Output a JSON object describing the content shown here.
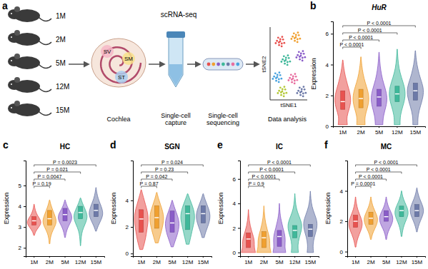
{
  "diagram": {
    "panel": "a",
    "ages": [
      "1M",
      "2M",
      "5M",
      "12M",
      "15M"
    ],
    "method": "scRNA-seq",
    "cochlea_labels": [
      "SV",
      "SM",
      "ST"
    ],
    "steps": [
      "Cochlea",
      "Single-cell capture",
      "Single-cell sequencing",
      "Data analysis"
    ],
    "axes": [
      "tSNE2",
      "tSNE1"
    ]
  },
  "chart_data": [
    {
      "type": "violin",
      "panel": "b",
      "title": "HuR",
      "ylabel": "Expression",
      "categories": [
        "1M",
        "2M",
        "5M",
        "12M",
        "15M"
      ],
      "colors": [
        "#e8524f",
        "#f0a030",
        "#8a5cc8",
        "#3fb89a",
        "#6d7aa8"
      ],
      "ylim": [
        0,
        6.8
      ],
      "yticks": [
        0,
        2,
        4,
        6
      ],
      "violins": [
        {
          "min": 0.1,
          "q1": 1.1,
          "median": 1.6,
          "q3": 2.3,
          "max": 4.3,
          "density": [
            0.55,
            0.45,
            0.8,
            1.0,
            0.85,
            0.55,
            0.3,
            0.12,
            0.02
          ]
        },
        {
          "min": 0.1,
          "q1": 1.2,
          "median": 1.8,
          "q3": 2.4,
          "max": 4.5,
          "density": [
            0.5,
            0.45,
            0.8,
            1.0,
            0.85,
            0.5,
            0.25,
            0.1,
            0.02
          ]
        },
        {
          "min": 0.1,
          "q1": 1.3,
          "median": 1.9,
          "q3": 2.4,
          "max": 4.8,
          "density": [
            0.45,
            0.5,
            0.85,
            1.0,
            0.75,
            0.4,
            0.2,
            0.08,
            0.02
          ]
        },
        {
          "min": 0.1,
          "q1": 1.6,
          "median": 2.1,
          "q3": 2.6,
          "max": 5.0,
          "density": [
            0.35,
            0.35,
            0.7,
            1.0,
            0.9,
            0.5,
            0.2,
            0.08,
            0.02
          ]
        },
        {
          "min": 0.1,
          "q1": 1.7,
          "median": 2.3,
          "q3": 2.8,
          "max": 4.9,
          "density": [
            0.3,
            0.3,
            0.6,
            0.95,
            1.0,
            0.6,
            0.3,
            0.1,
            0.02
          ]
        }
      ],
      "comparisons": [
        {
          "pair": [
            "1M",
            "2M"
          ],
          "label": "P < 0.0001"
        },
        {
          "pair": [
            "1M",
            "5M"
          ],
          "label": "P < 0.0001"
        },
        {
          "pair": [
            "1M",
            "12M"
          ],
          "label": "P < 0.0001"
        },
        {
          "pair": [
            "1M",
            "15M"
          ],
          "label": "P < 0.0001"
        }
      ]
    },
    {
      "type": "violin",
      "panel": "c",
      "title": "HC",
      "ylabel": "Expression",
      "categories": [
        "1M",
        "2M",
        "5M",
        "12M",
        "15M"
      ],
      "colors": [
        "#e8524f",
        "#f0a030",
        "#8a5cc8",
        "#3fb89a",
        "#6d7aa8"
      ],
      "ylim": [
        1.6,
        6.2
      ],
      "yticks": [
        2,
        3,
        4,
        5
      ],
      "violins": [
        {
          "min": 2.6,
          "q1": 3.1,
          "median": 3.3,
          "q3": 3.5,
          "max": 4.1,
          "density": [
            0.05,
            0.2,
            0.6,
            1.0,
            0.9,
            0.5,
            0.25,
            0.1,
            0.02
          ]
        },
        {
          "min": 2.2,
          "q1": 3.1,
          "median": 3.4,
          "q3": 3.8,
          "max": 4.3,
          "density": [
            0.05,
            0.1,
            0.3,
            0.7,
            1.0,
            0.8,
            0.5,
            0.2,
            0.03
          ]
        },
        {
          "min": 2.5,
          "q1": 3.3,
          "median": 3.6,
          "q3": 3.9,
          "max": 4.3,
          "density": [
            0.05,
            0.15,
            0.35,
            0.7,
            1.0,
            0.9,
            0.5,
            0.2,
            0.03
          ]
        },
        {
          "min": 2.1,
          "q1": 3.4,
          "median": 3.7,
          "q3": 4.0,
          "max": 4.4,
          "density": [
            0.02,
            0.08,
            0.15,
            0.4,
            0.8,
            1.0,
            0.7,
            0.3,
            0.03
          ]
        },
        {
          "min": 2.8,
          "q1": 3.5,
          "median": 3.8,
          "q3": 4.1,
          "max": 4.9,
          "density": [
            0.05,
            0.3,
            0.7,
            1.0,
            0.9,
            0.6,
            0.3,
            0.12,
            0.02
          ]
        }
      ],
      "comparisons": [
        {
          "pair": [
            "1M",
            "2M"
          ],
          "label": "P = 0.19"
        },
        {
          "pair": [
            "1M",
            "5M"
          ],
          "label": "P = 0.0047"
        },
        {
          "pair": [
            "1M",
            "12M"
          ],
          "label": "P = 0.021"
        },
        {
          "pair": [
            "1M",
            "15M"
          ],
          "label": "P = 0.0023"
        }
      ]
    },
    {
      "type": "violin",
      "panel": "d",
      "title": "SGN",
      "ylabel": "Expression",
      "categories": [
        "1M",
        "2M",
        "5M",
        "12M",
        "15M"
      ],
      "colors": [
        "#e8524f",
        "#f0a030",
        "#8a5cc8",
        "#3fb89a",
        "#6d7aa8"
      ],
      "ylim": [
        -0.2,
        7
      ],
      "yticks": [
        0,
        2,
        4
      ],
      "violins": [
        {
          "min": 0.3,
          "q1": 1.6,
          "median": 2.6,
          "q3": 3.3,
          "max": 4.8,
          "density": [
            0.2,
            0.5,
            0.7,
            0.85,
            1.0,
            0.9,
            0.6,
            0.3,
            0.03
          ]
        },
        {
          "min": 0.8,
          "q1": 1.9,
          "median": 2.7,
          "q3": 3.6,
          "max": 4.6,
          "density": [
            0.2,
            0.45,
            0.7,
            0.9,
            1.0,
            0.85,
            0.55,
            0.25,
            0.03
          ]
        },
        {
          "min": 0.5,
          "q1": 1.6,
          "median": 2.3,
          "q3": 3.2,
          "max": 4.0,
          "density": [
            0.15,
            0.4,
            0.7,
            0.9,
            1.0,
            0.85,
            0.55,
            0.25,
            0.03
          ]
        },
        {
          "min": 0.7,
          "q1": 1.8,
          "median": 3.0,
          "q3": 3.6,
          "max": 4.5,
          "density": [
            0.2,
            0.4,
            0.6,
            0.8,
            1.0,
            0.95,
            0.7,
            0.35,
            0.03
          ]
        },
        {
          "min": 1.2,
          "q1": 2.3,
          "median": 3.0,
          "q3": 3.6,
          "max": 4.5,
          "density": [
            0.15,
            0.35,
            0.65,
            0.9,
            1.0,
            0.85,
            0.55,
            0.25,
            0.03
          ]
        }
      ],
      "comparisons": [
        {
          "pair": [
            "1M",
            "2M"
          ],
          "label": "P = 0.87"
        },
        {
          "pair": [
            "1M",
            "5M"
          ],
          "label": "P = 0.042"
        },
        {
          "pair": [
            "1M",
            "12M"
          ],
          "label": "P = 0.23"
        },
        {
          "pair": [
            "1M",
            "15M"
          ],
          "label": "P = 0.024"
        }
      ]
    },
    {
      "type": "violin",
      "panel": "e",
      "title": "IC",
      "ylabel": "Expression",
      "categories": [
        "1M",
        "2M",
        "5M",
        "12M",
        "15M"
      ],
      "colors": [
        "#e8524f",
        "#f0a030",
        "#8a5cc8",
        "#3fb89a",
        "#6d7aa8"
      ],
      "ylim": [
        -0.3,
        7.5
      ],
      "yticks": [
        0,
        2,
        4,
        6
      ],
      "violins": [
        {
          "min": 0,
          "q1": 0.4,
          "median": 1.1,
          "q3": 1.6,
          "max": 3.5,
          "density": [
            1.0,
            0.8,
            0.85,
            0.7,
            0.45,
            0.25,
            0.12,
            0.05,
            0.01
          ]
        },
        {
          "min": 0,
          "q1": 0.4,
          "median": 1.2,
          "q3": 1.7,
          "max": 3.8,
          "density": [
            1.0,
            0.8,
            0.85,
            0.7,
            0.45,
            0.25,
            0.12,
            0.05,
            0.01
          ]
        },
        {
          "min": 0,
          "q1": 0.5,
          "median": 1.3,
          "q3": 1.8,
          "max": 4.0,
          "density": [
            0.9,
            0.75,
            0.85,
            0.75,
            0.5,
            0.3,
            0.12,
            0.05,
            0.01
          ]
        },
        {
          "min": 0,
          "q1": 1.2,
          "median": 1.8,
          "q3": 2.2,
          "max": 4.8,
          "density": [
            0.5,
            0.4,
            0.6,
            0.95,
            1.0,
            0.55,
            0.2,
            0.07,
            0.01
          ]
        },
        {
          "min": 0,
          "q1": 1.3,
          "median": 1.9,
          "q3": 2.3,
          "max": 5.0,
          "density": [
            0.45,
            0.35,
            0.55,
            0.9,
            1.0,
            0.6,
            0.22,
            0.07,
            0.01
          ]
        }
      ],
      "comparisons": [
        {
          "pair": [
            "1M",
            "2M"
          ],
          "label": "P = 0.9"
        },
        {
          "pair": [
            "1M",
            "5M"
          ],
          "label": "P < 0.0001"
        },
        {
          "pair": [
            "1M",
            "12M"
          ],
          "label": "P < 0.0001"
        },
        {
          "pair": [
            "1M",
            "15M"
          ],
          "label": "P < 0.0001"
        }
      ]
    },
    {
      "type": "violin",
      "panel": "f",
      "title": "MC",
      "ylabel": "Expression",
      "categories": [
        "1M",
        "2M",
        "5M",
        "12M",
        "15M"
      ],
      "colors": [
        "#e8524f",
        "#f0a030",
        "#8a5cc8",
        "#3fb89a",
        "#6d7aa8"
      ],
      "ylim": [
        -0.3,
        6
      ],
      "yticks": [
        0,
        2,
        4
      ],
      "violins": [
        {
          "min": 0.3,
          "q1": 1.6,
          "median": 2.0,
          "q3": 2.4,
          "max": 3.6,
          "density": [
            0.05,
            0.2,
            0.5,
            0.9,
            1.0,
            0.65,
            0.3,
            0.1,
            0.02
          ]
        },
        {
          "min": 0.8,
          "q1": 1.8,
          "median": 2.2,
          "q3": 2.6,
          "max": 3.6,
          "density": [
            0.05,
            0.2,
            0.55,
            0.9,
            1.0,
            0.7,
            0.35,
            0.12,
            0.02
          ]
        },
        {
          "min": 0.8,
          "q1": 2.0,
          "median": 2.3,
          "q3": 2.7,
          "max": 3.6,
          "density": [
            0.05,
            0.15,
            0.45,
            0.85,
            1.0,
            0.75,
            0.35,
            0.12,
            0.02
          ]
        },
        {
          "min": 1.0,
          "q1": 2.3,
          "median": 2.7,
          "q3": 3.0,
          "max": 4.0,
          "density": [
            0.05,
            0.15,
            0.35,
            0.7,
            1.0,
            0.85,
            0.45,
            0.15,
            0.02
          ]
        },
        {
          "min": 1.3,
          "q1": 2.3,
          "median": 2.7,
          "q3": 3.1,
          "max": 4.2,
          "density": [
            0.05,
            0.2,
            0.5,
            0.85,
            1.0,
            0.75,
            0.4,
            0.15,
            0.02
          ]
        }
      ],
      "comparisons": [
        {
          "pair": [
            "1M",
            "2M"
          ],
          "label": "P = 0.0001"
        },
        {
          "pair": [
            "1M",
            "5M"
          ],
          "label": "P < 0.0001"
        },
        {
          "pair": [
            "1M",
            "12M"
          ],
          "label": "P < 0.0001"
        },
        {
          "pair": [
            "1M",
            "15M"
          ],
          "label": "P < 0.0001"
        }
      ]
    }
  ]
}
